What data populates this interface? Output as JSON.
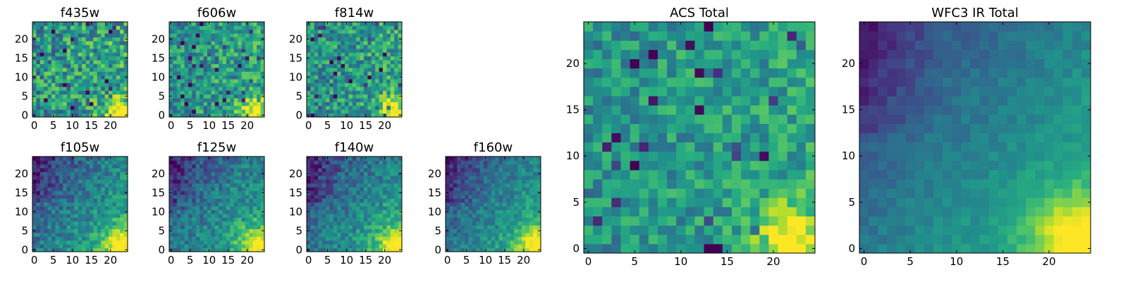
{
  "colormap": [
    "#440154",
    "#472d7b",
    "#3b528b",
    "#2c728e",
    "#21918c",
    "#28ae80",
    "#5ec962",
    "#addc30",
    "#fde725"
  ],
  "chart_data": [
    {
      "type": "heatmap",
      "title": "f435w",
      "grid_size": 25,
      "xlim": [
        0,
        24
      ],
      "ylim": [
        0,
        24
      ],
      "xticks": [
        0,
        5,
        10,
        15,
        20
      ],
      "yticks": [
        0,
        5,
        10,
        15,
        20
      ],
      "seed": 11,
      "pattern": "acs",
      "noise": 0.55
    },
    {
      "type": "heatmap",
      "title": "f606w",
      "grid_size": 25,
      "xlim": [
        0,
        24
      ],
      "ylim": [
        0,
        24
      ],
      "xticks": [
        0,
        5,
        10,
        15,
        20
      ],
      "yticks": [
        0,
        5,
        10,
        15,
        20
      ],
      "seed": 23,
      "pattern": "acs",
      "noise": 0.45
    },
    {
      "type": "heatmap",
      "title": "f814w",
      "grid_size": 25,
      "xlim": [
        0,
        24
      ],
      "ylim": [
        0,
        24
      ],
      "xticks": [
        0,
        5,
        10,
        15,
        20
      ],
      "yticks": [
        0,
        5,
        10,
        15,
        20
      ],
      "seed": 37,
      "pattern": "acs",
      "noise": 0.45
    },
    {
      "type": "heatmap",
      "title": "f105w",
      "grid_size": 25,
      "xlim": [
        0,
        24
      ],
      "ylim": [
        0,
        24
      ],
      "xticks": [
        0,
        5,
        10,
        15,
        20
      ],
      "yticks": [
        0,
        5,
        10,
        15,
        20
      ],
      "seed": 41,
      "pattern": "ir",
      "noise": 0.3
    },
    {
      "type": "heatmap",
      "title": "f125w",
      "grid_size": 25,
      "xlim": [
        0,
        24
      ],
      "ylim": [
        0,
        24
      ],
      "xticks": [
        0,
        5,
        10,
        15,
        20
      ],
      "yticks": [
        0,
        5,
        10,
        15,
        20
      ],
      "seed": 53,
      "pattern": "ir",
      "noise": 0.3
    },
    {
      "type": "heatmap",
      "title": "f140w",
      "grid_size": 25,
      "xlim": [
        0,
        24
      ],
      "ylim": [
        0,
        24
      ],
      "xticks": [
        0,
        5,
        10,
        15,
        20
      ],
      "yticks": [
        0,
        5,
        10,
        15,
        20
      ],
      "seed": 67,
      "pattern": "ir",
      "noise": 0.28
    },
    {
      "type": "heatmap",
      "title": "f160w",
      "grid_size": 25,
      "xlim": [
        0,
        24
      ],
      "ylim": [
        0,
        24
      ],
      "xticks": [
        0,
        5,
        10,
        15,
        20
      ],
      "yticks": [
        0,
        5,
        10,
        15,
        20
      ],
      "seed": 79,
      "pattern": "ir",
      "noise": 0.25
    },
    {
      "type": "heatmap",
      "title": "ACS Total",
      "grid_size": 25,
      "xlim": [
        0,
        24
      ],
      "ylim": [
        0,
        24
      ],
      "xticks": [
        0,
        5,
        10,
        15,
        20
      ],
      "yticks": [
        0,
        5,
        10,
        15,
        20
      ],
      "seed": 97,
      "pattern": "acs",
      "noise": 0.35
    },
    {
      "type": "heatmap",
      "title": "WFC3 IR Total",
      "grid_size": 25,
      "xlim": [
        0,
        24
      ],
      "ylim": [
        0,
        24
      ],
      "xticks": [
        0,
        5,
        10,
        15,
        20
      ],
      "yticks": [
        0,
        5,
        10,
        15,
        20
      ],
      "seed": 101,
      "pattern": "ir",
      "noise": 0.12
    }
  ]
}
